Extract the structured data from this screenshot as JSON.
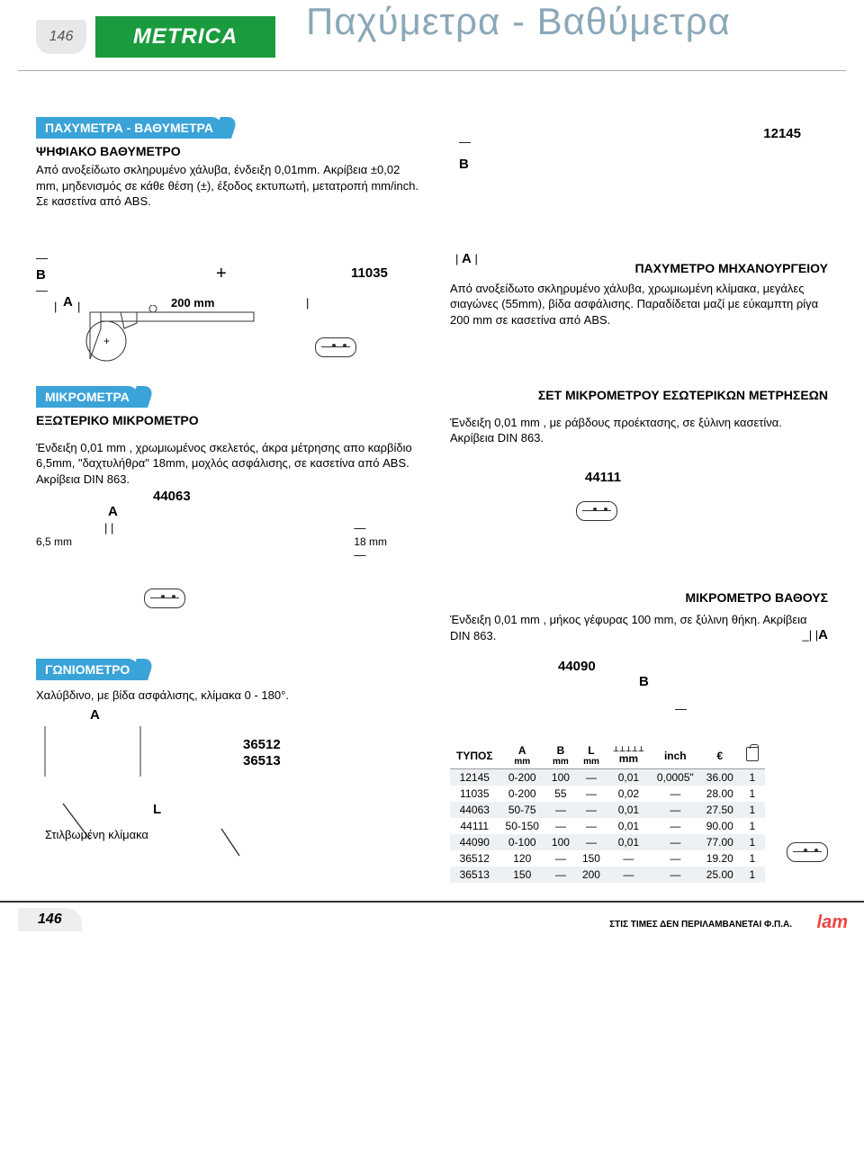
{
  "page_number_top": "146",
  "page_number_bottom": "146",
  "logo_text": "METRICA",
  "main_title": "Παχύμετρα - Βαθύμετρα",
  "footer_note": "ΣΤΙΣ ΤΙΜΕΣ ΔΕΝ ΠΕΡΙΛΑΜΒΑΝΕΤΑΙ Φ.Π.Α.",
  "footer_logo": "lam",
  "accent_color": "#3aa3d8",
  "logo_bg": "#1a9b3e",
  "section1": {
    "tab": "ΠΑΧΥΜΕΤΡΑ - ΒΑΘΥΜΕΤΡΑ",
    "subtitle": "ΨΗΦΙΑΚΟ ΒΑΘΥΜΕΤΡΟ",
    "body": "Από ανοξείδωτο σκληρυμένο χάλυβα, ένδειξη 0,01mm. Ακρίβεια ±0,02 mm, μηδενισμός σε κάθε θέση (±), έξοδος εκτυπωτή, μετατροπή mm/inch. Σε κασετίνα από ABS.",
    "code": "12145",
    "label_B": "B"
  },
  "section2": {
    "code": "11035",
    "length": "200 mm",
    "label_A": "A",
    "label_B": "B",
    "plus": "+"
  },
  "section3": {
    "title": "ΠΑΧΥΜΕΤΡΟ ΜΗΧΑΝΟΥΡΓΕΙΟΥ",
    "body": "Από ανοξείδωτο σκληρυμένο χάλυβα, χρωμιωμένη κλίμακα, μεγάλες σιαγώνες (55mm), βίδα ασφάλισης. Παραδίδεται μαζί με εύκαμπτη ρίγα 200 mm σε κασετίνα από ABS.",
    "label_A": "A"
  },
  "section4": {
    "tab": "ΜΙΚΡΟΜΕΤΡΑ",
    "subtitle": "ΕΞΩΤΕΡΙΚΟ ΜΙΚΡΟΜΕΤΡΟ",
    "body": "Ένδειξη 0,01 mm , χρωμιωμένος σκελετός, άκρα μέτρησης απο καρβίδιο   6,5mm, \"δαχτυλήθρα\"   18mm, μοχλός ασφάλισης, σε κασετίνα από ABS. Ακρίβεια DIN 863.",
    "code": "44063",
    "dim_small": "6,5 mm",
    "dim_right": "18 mm",
    "label_A": "A"
  },
  "section5": {
    "title": "ΣΕΤ ΜΙΚΡΟΜΕΤΡΟΥ ΕΣΩΤΕΡΙΚΩΝ ΜΕΤΡΗΣΕΩΝ",
    "body": "Ένδειξη 0,01 mm , με ράβδους προέκτασης, σε ξύλινη κασετίνα. Ακρίβεια DIN 863.",
    "code": "44111"
  },
  "section6": {
    "title": "ΜΙΚΡΟΜΕΤΡΟ ΒΑΘΟΥΣ",
    "body": "Ένδειξη 0,01 mm , μήκος γέφυρας 100 mm, σε ξύλινη θήκη. Ακρίβεια DIN 863.",
    "code": "44090",
    "label_A": "A",
    "label_B": "B"
  },
  "section7": {
    "tab": "ΓΩΝΙΟΜΕΤΡΟ",
    "body": "Χαλύβδινο, με βίδα ασφάλισης, κλίμακα 0 - 180°.",
    "label_A": "A",
    "label_L": "L",
    "note": "Στιλβωμένη κλίμακα",
    "code1": "36512",
    "code2": "36513"
  },
  "table": {
    "headers": [
      "ΤΥΠΟΣ",
      "A mm",
      "B mm",
      "L mm",
      "mm",
      "inch",
      "€",
      ""
    ],
    "rows": [
      {
        "shade": true,
        "cells": [
          "12145",
          "0-200",
          "100",
          "—",
          "0,01",
          "0,0005\"",
          "36.00",
          "1"
        ]
      },
      {
        "shade": false,
        "cells": [
          "11035",
          "0-200",
          "55",
          "—",
          "0,02",
          "—",
          "28.00",
          "1"
        ]
      },
      {
        "shade": true,
        "cells": [
          "44063",
          "50-75",
          "—",
          "—",
          "0,01",
          "—",
          "27.50",
          "1"
        ]
      },
      {
        "shade": false,
        "cells": [
          "44111",
          "50-150",
          "—",
          "—",
          "0,01",
          "—",
          "90.00",
          "1"
        ]
      },
      {
        "shade": true,
        "cells": [
          "44090",
          "0-100",
          "100",
          "—",
          "0,01",
          "—",
          "77.00",
          "1"
        ]
      },
      {
        "shade": false,
        "cells": [
          "36512",
          "120",
          "—",
          "150",
          "—",
          "—",
          "19.20",
          "1"
        ]
      },
      {
        "shade": true,
        "cells": [
          "36513",
          "150",
          "—",
          "200",
          "—",
          "—",
          "25.00",
          "1"
        ]
      }
    ],
    "scale_icon_label": "⊥⊥⊥⊥⊥"
  }
}
